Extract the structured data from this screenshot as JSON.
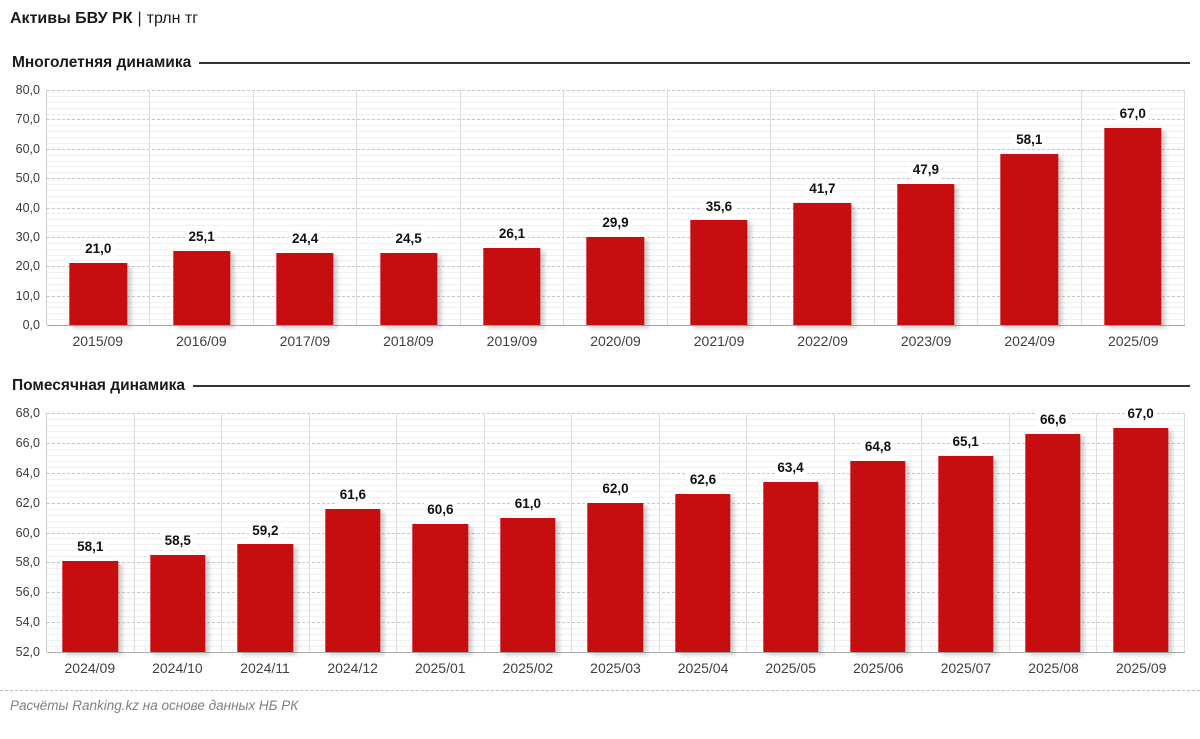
{
  "header": {
    "title_main": "Активы БВУ РК",
    "title_sep": "|",
    "title_unit": "трлн тг"
  },
  "sections": [
    {
      "label": "Многолетняя динамика"
    },
    {
      "label": "Помесячная динамика"
    }
  ],
  "footer": {
    "credit": "Расчёты Ranking.kz на основе данных НБ РК"
  },
  "colors": {
    "bar": "#c60d10",
    "major_grid": "#c6c6c6",
    "minor_grid": "#f0f0f0",
    "axis": "#a8a8a8",
    "tick_text": "#3a3a3a"
  },
  "chart_data": [
    {
      "type": "bar",
      "title": "Многолетняя динамика",
      "ylabel": "трлн тг",
      "categories": [
        "2015/09",
        "2016/09",
        "2017/09",
        "2018/09",
        "2019/09",
        "2020/09",
        "2021/09",
        "2022/09",
        "2023/09",
        "2024/09",
        "2025/09"
      ],
      "values": [
        21.0,
        25.1,
        24.4,
        24.5,
        26.1,
        29.9,
        35.6,
        41.7,
        47.9,
        58.1,
        67.0
      ],
      "ylim": [
        0,
        80
      ],
      "ytick_step": 10,
      "minor_per_major": 5,
      "grid": true,
      "value_labels": true,
      "decimal_comma": true,
      "legend": "none",
      "bar_width_pct": 56
    },
    {
      "type": "bar",
      "title": "Помесячная динамика",
      "ylabel": "трлн тг",
      "categories": [
        "2024/09",
        "2024/10",
        "2024/11",
        "2024/12",
        "2025/01",
        "2025/02",
        "2025/03",
        "2025/04",
        "2025/05",
        "2025/06",
        "2025/07",
        "2025/08",
        "2025/09"
      ],
      "values": [
        58.1,
        58.5,
        59.2,
        61.6,
        60.6,
        61.0,
        62.0,
        62.6,
        63.4,
        64.8,
        65.1,
        66.6,
        67.0
      ],
      "ylim": [
        52,
        68
      ],
      "ytick_step": 2,
      "minor_per_major": 5,
      "grid": true,
      "value_labels": true,
      "decimal_comma": true,
      "legend": "none",
      "bar_width_pct": 64
    }
  ]
}
